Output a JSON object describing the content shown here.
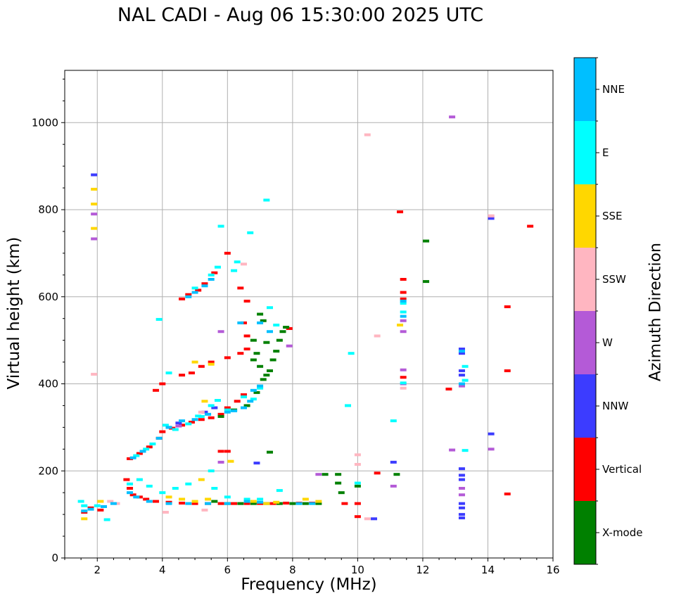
{
  "title": "NAL CADI - Aug 06 15:30:00 2025 UTC",
  "chart_data": {
    "type": "scatter",
    "title": "NAL CADI - Aug 06 15:30:00 2025 UTC",
    "xlabel": "Frequency (MHz)",
    "ylabel": "Virtual height (km)",
    "xlim": [
      1,
      16
    ],
    "ylim": [
      0,
      1120
    ],
    "xticks": [
      2,
      4,
      6,
      8,
      10,
      12,
      14,
      16
    ],
    "yticks": [
      0,
      200,
      400,
      600,
      800,
      1000
    ],
    "grid": true,
    "colorbar": {
      "label": "Azimuth Direction",
      "categories": [
        {
          "name": "X-mode",
          "color": "#008000"
        },
        {
          "name": "Vertical",
          "color": "#ff0000"
        },
        {
          "name": "NNW",
          "color": "#3c3cff"
        },
        {
          "name": "W",
          "color": "#b45ad7"
        },
        {
          "name": "SSW",
          "color": "#ffb6c1"
        },
        {
          "name": "SSE",
          "color": "#ffd700"
        },
        {
          "name": "E",
          "color": "#00ffff"
        },
        {
          "name": "NNE",
          "color": "#00bfff"
        }
      ]
    },
    "series": [
      {
        "name": "Vertical",
        "points": [
          [
            1.6,
            105
          ],
          [
            1.8,
            115
          ],
          [
            2.1,
            110
          ],
          [
            2.9,
            180
          ],
          [
            3.0,
            160
          ],
          [
            3.1,
            145
          ],
          [
            3.3,
            140
          ],
          [
            3.5,
            135
          ],
          [
            3.8,
            130
          ],
          [
            4.2,
            128
          ],
          [
            4.6,
            126
          ],
          [
            5.0,
            125
          ],
          [
            5.4,
            125
          ],
          [
            5.8,
            125
          ],
          [
            6.2,
            125
          ],
          [
            6.6,
            125
          ],
          [
            7.0,
            125
          ],
          [
            7.4,
            125
          ],
          [
            7.8,
            126
          ],
          [
            8.2,
            126
          ],
          [
            8.6,
            126
          ],
          [
            10.0,
            125
          ],
          [
            10.0,
            95
          ],
          [
            3.0,
            228
          ],
          [
            3.3,
            240
          ],
          [
            3.6,
            255
          ],
          [
            3.9,
            275
          ],
          [
            4.0,
            290
          ],
          [
            4.3,
            298
          ],
          [
            4.6,
            305
          ],
          [
            4.9,
            312
          ],
          [
            5.2,
            318
          ],
          [
            5.5,
            322
          ],
          [
            5.8,
            330
          ],
          [
            6.0,
            345
          ],
          [
            6.3,
            360
          ],
          [
            6.5,
            375
          ],
          [
            3.8,
            385
          ],
          [
            4.0,
            400
          ],
          [
            4.6,
            420
          ],
          [
            4.9,
            425
          ],
          [
            5.2,
            440
          ],
          [
            5.5,
            450
          ],
          [
            6.0,
            460
          ],
          [
            6.4,
            470
          ],
          [
            6.6,
            480
          ],
          [
            6.6,
            510
          ],
          [
            6.5,
            540
          ],
          [
            6.6,
            590
          ],
          [
            6.4,
            620
          ],
          [
            6.0,
            700
          ],
          [
            4.6,
            595
          ],
          [
            4.8,
            605
          ],
          [
            5.1,
            615
          ],
          [
            5.3,
            630
          ],
          [
            5.6,
            655
          ],
          [
            5.8,
            245
          ],
          [
            6.0,
            245
          ],
          [
            9.6,
            125
          ],
          [
            10.6,
            195
          ],
          [
            11.3,
            795
          ],
          [
            11.4,
            640
          ],
          [
            11.4,
            610
          ],
          [
            11.4,
            595
          ],
          [
            11.4,
            415
          ],
          [
            12.8,
            388
          ],
          [
            14.6,
            577
          ],
          [
            14.6,
            430
          ],
          [
            14.6,
            147
          ],
          [
            15.3,
            762
          ],
          [
            7.9,
            527
          ]
        ]
      },
      {
        "name": "X-mode",
        "points": [
          [
            5.6,
            130
          ],
          [
            6.0,
            125
          ],
          [
            6.4,
            125
          ],
          [
            6.8,
            125
          ],
          [
            7.2,
            125
          ],
          [
            7.6,
            125
          ],
          [
            8.0,
            125
          ],
          [
            8.4,
            125
          ],
          [
            8.8,
            125
          ],
          [
            9.0,
            192
          ],
          [
            9.4,
            192
          ],
          [
            9.4,
            172
          ],
          [
            9.5,
            150
          ],
          [
            10.0,
            165
          ],
          [
            11.2,
            192
          ],
          [
            12.1,
            728
          ],
          [
            12.1,
            635
          ],
          [
            5.8,
            325
          ],
          [
            6.2,
            340
          ],
          [
            6.6,
            350
          ],
          [
            6.9,
            380
          ],
          [
            7.1,
            410
          ],
          [
            7.3,
            430
          ],
          [
            7.4,
            455
          ],
          [
            7.5,
            475
          ],
          [
            7.6,
            500
          ],
          [
            7.7,
            520
          ],
          [
            7.8,
            530
          ],
          [
            7.0,
            560
          ],
          [
            7.1,
            545
          ],
          [
            6.8,
            500
          ],
          [
            6.9,
            470
          ],
          [
            7.0,
            440
          ],
          [
            7.2,
            420
          ],
          [
            6.8,
            455
          ],
          [
            7.3,
            243
          ],
          [
            7.2,
            495
          ]
        ]
      },
      {
        "name": "NNW",
        "points": [
          [
            13.2,
            480
          ],
          [
            13.2,
            470
          ],
          [
            13.2,
            430
          ],
          [
            13.2,
            420
          ],
          [
            13.2,
            205
          ],
          [
            13.2,
            190
          ],
          [
            13.2,
            180
          ],
          [
            13.2,
            125
          ],
          [
            13.2,
            115
          ],
          [
            13.2,
            100
          ],
          [
            13.2,
            92
          ],
          [
            14.1,
            285
          ],
          [
            14.1,
            780
          ],
          [
            11.1,
            220
          ],
          [
            10.5,
            90
          ],
          [
            6.9,
            218
          ],
          [
            1.9,
            880
          ],
          [
            5.6,
            345
          ],
          [
            5.3,
            335
          ],
          [
            4.5,
            310
          ],
          [
            4.2,
            300
          ]
        ]
      },
      {
        "name": "W",
        "points": [
          [
            12.9,
            1013
          ],
          [
            12.9,
            248
          ],
          [
            13.2,
            395
          ],
          [
            13.2,
            160
          ],
          [
            13.2,
            145
          ],
          [
            14.1,
            250
          ],
          [
            14.1,
            785
          ],
          [
            8.8,
            192
          ],
          [
            11.1,
            165
          ],
          [
            11.4,
            545
          ],
          [
            11.4,
            520
          ],
          [
            11.4,
            432
          ],
          [
            11.4,
            400
          ],
          [
            7.9,
            487
          ],
          [
            1.9,
            733
          ],
          [
            1.9,
            790
          ],
          [
            5.8,
            220
          ],
          [
            5.8,
            520
          ],
          [
            4.5,
            303
          ]
        ]
      },
      {
        "name": "SSW",
        "points": [
          [
            10.3,
            972
          ],
          [
            10.6,
            510
          ],
          [
            10.3,
            90
          ],
          [
            10.0,
            237
          ],
          [
            10.0,
            215
          ],
          [
            11.4,
            390
          ],
          [
            14.1,
            786
          ],
          [
            1.9,
            422
          ],
          [
            2.4,
            130
          ],
          [
            2.6,
            125
          ],
          [
            4.1,
            105
          ],
          [
            5.3,
            110
          ],
          [
            6.5,
            675
          ],
          [
            5.2,
            335
          ]
        ]
      },
      {
        "name": "SSE",
        "points": [
          [
            1.9,
            847
          ],
          [
            1.9,
            813
          ],
          [
            1.9,
            757
          ],
          [
            1.6,
            90
          ],
          [
            2.1,
            130
          ],
          [
            4.2,
            140
          ],
          [
            4.6,
            135
          ],
          [
            5.0,
            130
          ],
          [
            5.4,
            135
          ],
          [
            6.8,
            130
          ],
          [
            7.2,
            125
          ],
          [
            7.5,
            128
          ],
          [
            8.4,
            135
          ],
          [
            8.8,
            130
          ],
          [
            6.1,
            222
          ],
          [
            5.2,
            180
          ],
          [
            5.0,
            450
          ],
          [
            5.5,
            445
          ],
          [
            11.3,
            535
          ],
          [
            5.3,
            360
          ]
        ]
      },
      {
        "name": "E",
        "points": [
          [
            1.5,
            130
          ],
          [
            1.6,
            120
          ],
          [
            2.0,
            120
          ],
          [
            2.3,
            88
          ],
          [
            3.0,
            170
          ],
          [
            3.3,
            180
          ],
          [
            3.6,
            165
          ],
          [
            4.0,
            150
          ],
          [
            4.4,
            160
          ],
          [
            4.8,
            170
          ],
          [
            5.5,
            200
          ],
          [
            5.6,
            160
          ],
          [
            6.0,
            140
          ],
          [
            6.6,
            135
          ],
          [
            7.0,
            135
          ],
          [
            7.6,
            155
          ],
          [
            9.8,
            470
          ],
          [
            9.7,
            350
          ],
          [
            11.1,
            315
          ],
          [
            11.4,
            565
          ],
          [
            11.4,
            585
          ],
          [
            11.4,
            402
          ],
          [
            13.3,
            408
          ],
          [
            13.3,
            440
          ],
          [
            13.3,
            247
          ],
          [
            3.9,
            548
          ],
          [
            4.2,
            425
          ],
          [
            5.8,
            762
          ],
          [
            6.7,
            747
          ],
          [
            7.2,
            822
          ],
          [
            7.3,
            575
          ],
          [
            7.5,
            535
          ],
          [
            6.3,
            680
          ],
          [
            6.2,
            660
          ],
          [
            6.5,
            370
          ],
          [
            6.8,
            365
          ],
          [
            7.0,
            390
          ],
          [
            3.2,
            235
          ],
          [
            3.5,
            250
          ],
          [
            3.7,
            262
          ],
          [
            4.1,
            305
          ],
          [
            4.4,
            295
          ],
          [
            4.8,
            308
          ],
          [
            5.1,
            326
          ],
          [
            5.5,
            350
          ],
          [
            5.7,
            362
          ],
          [
            6.0,
            340
          ],
          [
            5.2,
            325
          ],
          [
            5.0,
            620
          ],
          [
            5.5,
            650
          ],
          [
            5.7,
            668
          ],
          [
            10.0,
            172
          ]
        ]
      },
      {
        "name": "NNE",
        "points": [
          [
            1.6,
            108
          ],
          [
            1.8,
            112
          ],
          [
            2.2,
            118
          ],
          [
            2.5,
            125
          ],
          [
            3.0,
            150
          ],
          [
            3.2,
            140
          ],
          [
            3.6,
            130
          ],
          [
            4.2,
            125
          ],
          [
            4.8,
            125
          ],
          [
            5.4,
            125
          ],
          [
            6.0,
            125
          ],
          [
            6.6,
            130
          ],
          [
            7.0,
            128
          ],
          [
            8.2,
            125
          ],
          [
            8.6,
            125
          ],
          [
            3.1,
            230
          ],
          [
            3.4,
            245
          ],
          [
            3.9,
            275
          ],
          [
            4.2,
            300
          ],
          [
            4.6,
            315
          ],
          [
            5.0,
            318
          ],
          [
            5.4,
            330
          ],
          [
            6.0,
            335
          ],
          [
            6.2,
            338
          ],
          [
            6.5,
            345
          ],
          [
            6.7,
            360
          ],
          [
            6.8,
            385
          ],
          [
            7.0,
            395
          ],
          [
            4.8,
            600
          ],
          [
            5.0,
            610
          ],
          [
            5.3,
            625
          ],
          [
            5.5,
            640
          ],
          [
            11.4,
            555
          ],
          [
            11.4,
            590
          ],
          [
            13.2,
            400
          ],
          [
            13.2,
            475
          ],
          [
            7.3,
            520
          ],
          [
            7.0,
            540
          ],
          [
            6.4,
            540
          ]
        ]
      }
    ]
  }
}
